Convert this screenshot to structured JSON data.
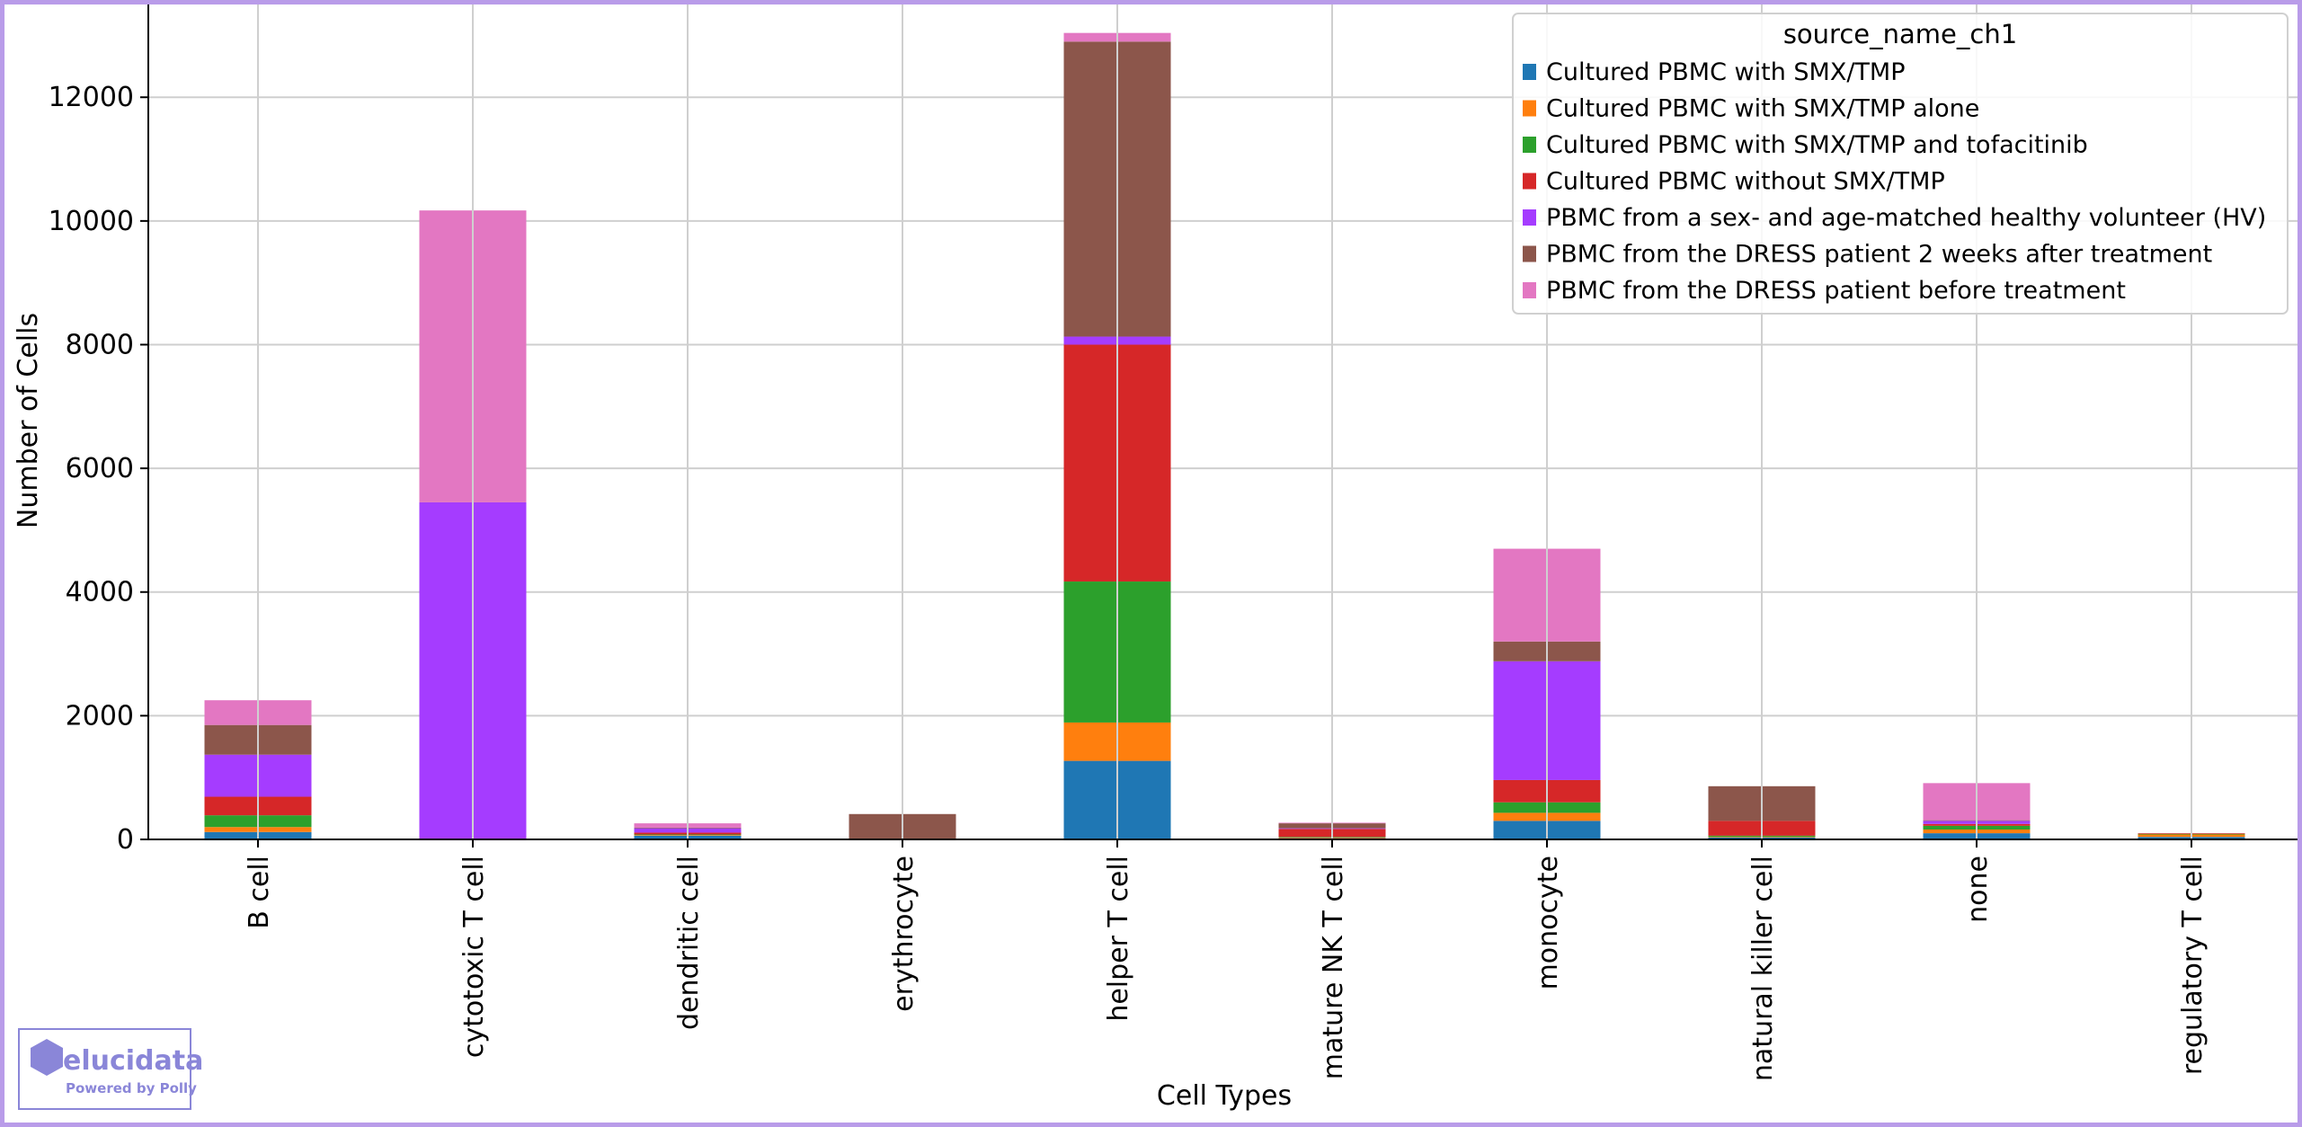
{
  "chart_data": {
    "type": "bar",
    "stacked": true,
    "title": "",
    "xlabel": "Cell Types",
    "ylabel": "Number of Cells",
    "ylim": [
      0,
      13500
    ],
    "yticks": [
      0,
      2000,
      4000,
      6000,
      8000,
      10000,
      12000
    ],
    "grid": true,
    "categories": [
      "B cell",
      "cytotoxic T cell",
      "dendritic cell",
      "erythrocyte",
      "helper T cell",
      "mature NK T cell",
      "monocyte",
      "natural killer cell",
      "none",
      "regulatory T cell"
    ],
    "legend": {
      "title": "source_name_ch1",
      "position": "top-right"
    },
    "series": [
      {
        "name": "Cultured PBMC with SMX/TMP",
        "color": "#1f77b4",
        "values": [
          120,
          0,
          60,
          0,
          1270,
          20,
          300,
          30,
          100,
          40
        ]
      },
      {
        "name": "Cultured PBMC with SMX/TMP alone",
        "color": "#ff7f0e",
        "values": [
          80,
          0,
          10,
          0,
          620,
          10,
          130,
          10,
          60,
          40
        ]
      },
      {
        "name": "Cultured PBMC with SMX/TMP and tofacitinib",
        "color": "#2ca02c",
        "values": [
          190,
          0,
          10,
          0,
          2280,
          10,
          170,
          20,
          60,
          10
        ]
      },
      {
        "name": "Cultured PBMC without SMX/TMP",
        "color": "#d62728",
        "values": [
          300,
          0,
          30,
          0,
          3830,
          130,
          360,
          240,
          30,
          10
        ]
      },
      {
        "name": "PBMC from a sex- and age-matched healthy volunteer (HV)",
        "color": "#a53cff",
        "values": [
          680,
          5450,
          70,
          0,
          130,
          10,
          1920,
          0,
          50,
          0
        ]
      },
      {
        "name": "PBMC from the DRESS patient 2 weeks after treatment",
        "color": "#8c564b",
        "values": [
          480,
          0,
          10,
          410,
          4770,
          80,
          320,
          560,
          10,
          0
        ]
      },
      {
        "name": "PBMC from the DRESS patient before treatment",
        "color": "#e377c2",
        "values": [
          400,
          4720,
          70,
          0,
          140,
          10,
          1500,
          0,
          600,
          0
        ]
      }
    ]
  },
  "logo": {
    "name": "elucidata",
    "tagline": "Powered by Polly"
  }
}
